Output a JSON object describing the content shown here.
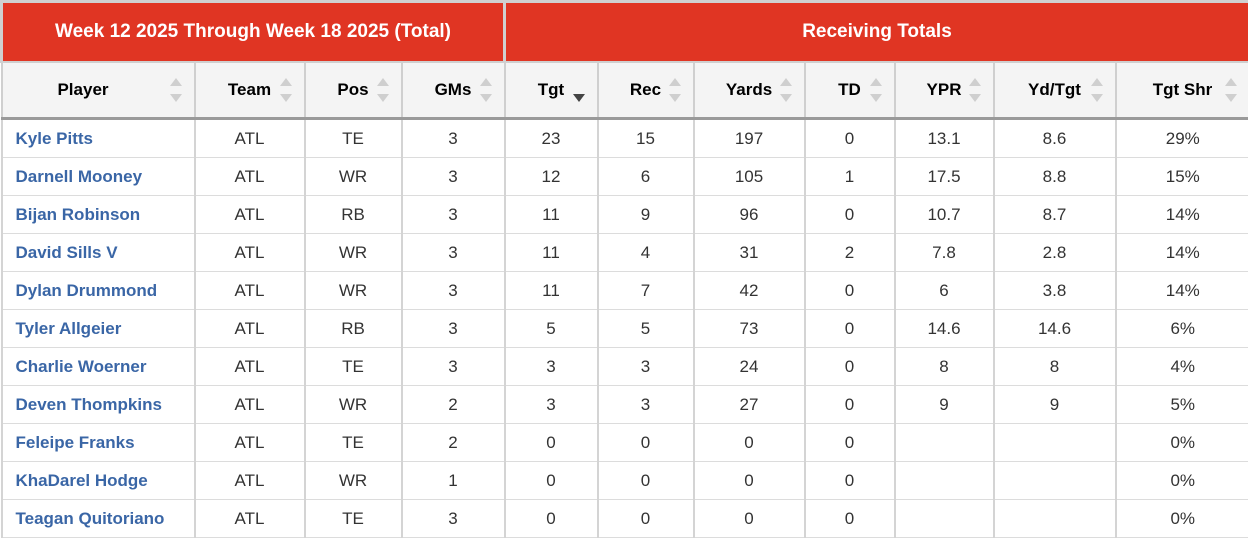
{
  "header": {
    "range_title": "Week 12 2025 Through Week 18 2025 (Total)",
    "group_title": "Receiving Totals"
  },
  "columns": [
    {
      "label": "Player",
      "sort": "none"
    },
    {
      "label": "Team",
      "sort": "none"
    },
    {
      "label": "Pos",
      "sort": "none"
    },
    {
      "label": "GMs",
      "sort": "none"
    },
    {
      "label": "Tgt",
      "sort": "descending"
    },
    {
      "label": "Rec",
      "sort": "none"
    },
    {
      "label": "Yards",
      "sort": "none"
    },
    {
      "label": "TD",
      "sort": "none"
    },
    {
      "label": "YPR",
      "sort": "none"
    },
    {
      "label": "Yd/Tgt",
      "sort": "none"
    },
    {
      "label": "Tgt Shr",
      "sort": "none"
    }
  ],
  "rows": [
    [
      "Kyle Pitts",
      "ATL",
      "TE",
      "3",
      "23",
      "15",
      "197",
      "0",
      "13.1",
      "8.6",
      "29%"
    ],
    [
      "Darnell Mooney",
      "ATL",
      "WR",
      "3",
      "12",
      "6",
      "105",
      "1",
      "17.5",
      "8.8",
      "15%"
    ],
    [
      "Bijan Robinson",
      "ATL",
      "RB",
      "3",
      "11",
      "9",
      "96",
      "0",
      "10.7",
      "8.7",
      "14%"
    ],
    [
      "David Sills V",
      "ATL",
      "WR",
      "3",
      "11",
      "4",
      "31",
      "2",
      "7.8",
      "2.8",
      "14%"
    ],
    [
      "Dylan Drummond",
      "ATL",
      "WR",
      "3",
      "11",
      "7",
      "42",
      "0",
      "6",
      "3.8",
      "14%"
    ],
    [
      "Tyler Allgeier",
      "ATL",
      "RB",
      "3",
      "5",
      "5",
      "73",
      "0",
      "14.6",
      "14.6",
      "6%"
    ],
    [
      "Charlie Woerner",
      "ATL",
      "TE",
      "3",
      "3",
      "3",
      "24",
      "0",
      "8",
      "8",
      "4%"
    ],
    [
      "Deven Thompkins",
      "ATL",
      "WR",
      "2",
      "3",
      "3",
      "27",
      "0",
      "9",
      "9",
      "5%"
    ],
    [
      "Feleipe Franks",
      "ATL",
      "TE",
      "2",
      "0",
      "0",
      "0",
      "0",
      "",
      "",
      "0%"
    ],
    [
      "KhaDarel Hodge",
      "ATL",
      "WR",
      "1",
      "0",
      "0",
      "0",
      "0",
      "",
      "",
      "0%"
    ],
    [
      "Teagan Quitoriano",
      "ATL",
      "TE",
      "3",
      "0",
      "0",
      "0",
      "0",
      "",
      "",
      "0%"
    ]
  ],
  "colors": {
    "header_red": "#e03523",
    "player_link": "#3a66a6"
  },
  "icons": {
    "sort": "sort-arrows-icon"
  }
}
